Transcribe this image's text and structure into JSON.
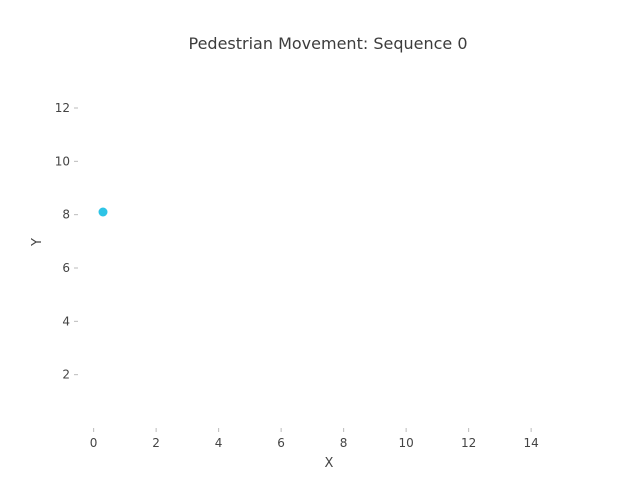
{
  "chart_data": {
    "type": "scatter",
    "title": "Pedestrian Movement: Sequence 0",
    "xlabel": "X",
    "ylabel": "Y",
    "xlim": [
      -0.5,
      15.5
    ],
    "ylim": [
      0,
      13.8
    ],
    "xticks": [
      0,
      2,
      4,
      6,
      8,
      10,
      12,
      14
    ],
    "yticks": [
      2,
      4,
      6,
      8,
      10,
      12
    ],
    "grid": false,
    "series": [
      {
        "color": "#2ec4e6",
        "x": [
          0.3
        ],
        "y": [
          8.1
        ]
      }
    ]
  }
}
